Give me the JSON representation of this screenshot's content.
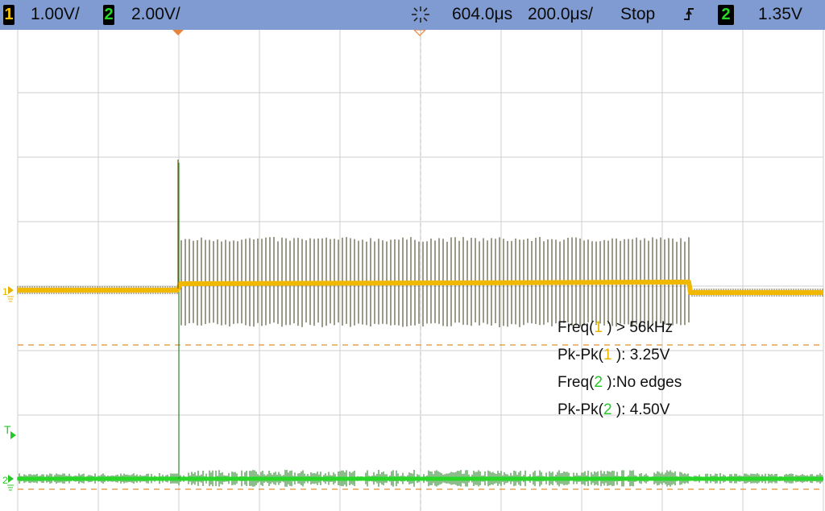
{
  "header": {
    "ch1_number": "1",
    "ch1_scale": "1.00V/",
    "ch2_number": "2",
    "ch2_scale": "2.00V/",
    "trigger_position": "604.0μs",
    "timebase": "200.0μs/",
    "run_state": "Stop",
    "trigger_slope_icon": "rising-edge-icon",
    "trigger_source": "2",
    "trigger_level": "1.35V"
  },
  "markers": {
    "ch1": "1",
    "ch2": "2",
    "trigger": "T"
  },
  "measurements": [
    {
      "prefix": "Freq(",
      "channel": "1",
      "suffix": " ) > 56kHz"
    },
    {
      "prefix": "Pk-Pk(",
      "channel": "1",
      "suffix": " ): 3.25V"
    },
    {
      "prefix": "Freq(",
      "channel": "2",
      "suffix": " ):No edges"
    },
    {
      "prefix": "Pk-Pk(",
      "channel": "2",
      "suffix": " ): 4.50V"
    }
  ],
  "colors": {
    "ch1": "#f0b800",
    "ch2": "#27d827",
    "header_bg": "#7f9bd1",
    "grid": "#c8c8c8",
    "cursor_line": "#e09030"
  },
  "chart_data": {
    "type": "line",
    "timebase_per_div": "200.0μs",
    "series": [
      {
        "name": "1",
        "volts_per_div": 1.0,
        "pk_pk_v": 3.25,
        "segments": [
          {
            "from_div": 0,
            "to_div": 2,
            "level_div": 0.0,
            "state": "idle"
          },
          {
            "from_div": 2,
            "to_div": 8.35,
            "level_div": 0.1,
            "state": "switching burst",
            "spike_high_div": 0.7,
            "spike_low_div": -0.55
          },
          {
            "from_div": 8.35,
            "to_div": 10,
            "level_div": -0.1,
            "state": "idle"
          }
        ]
      },
      {
        "name": "2",
        "volts_per_div": 2.0,
        "pk_pk_v": 4.5,
        "segments": [
          {
            "from_div": 0,
            "to_div": 10,
            "level_div": 0.0,
            "state": "noise"
          }
        ],
        "transient_at_div": 2.0,
        "transient_peak_div": 5.0
      }
    ]
  }
}
